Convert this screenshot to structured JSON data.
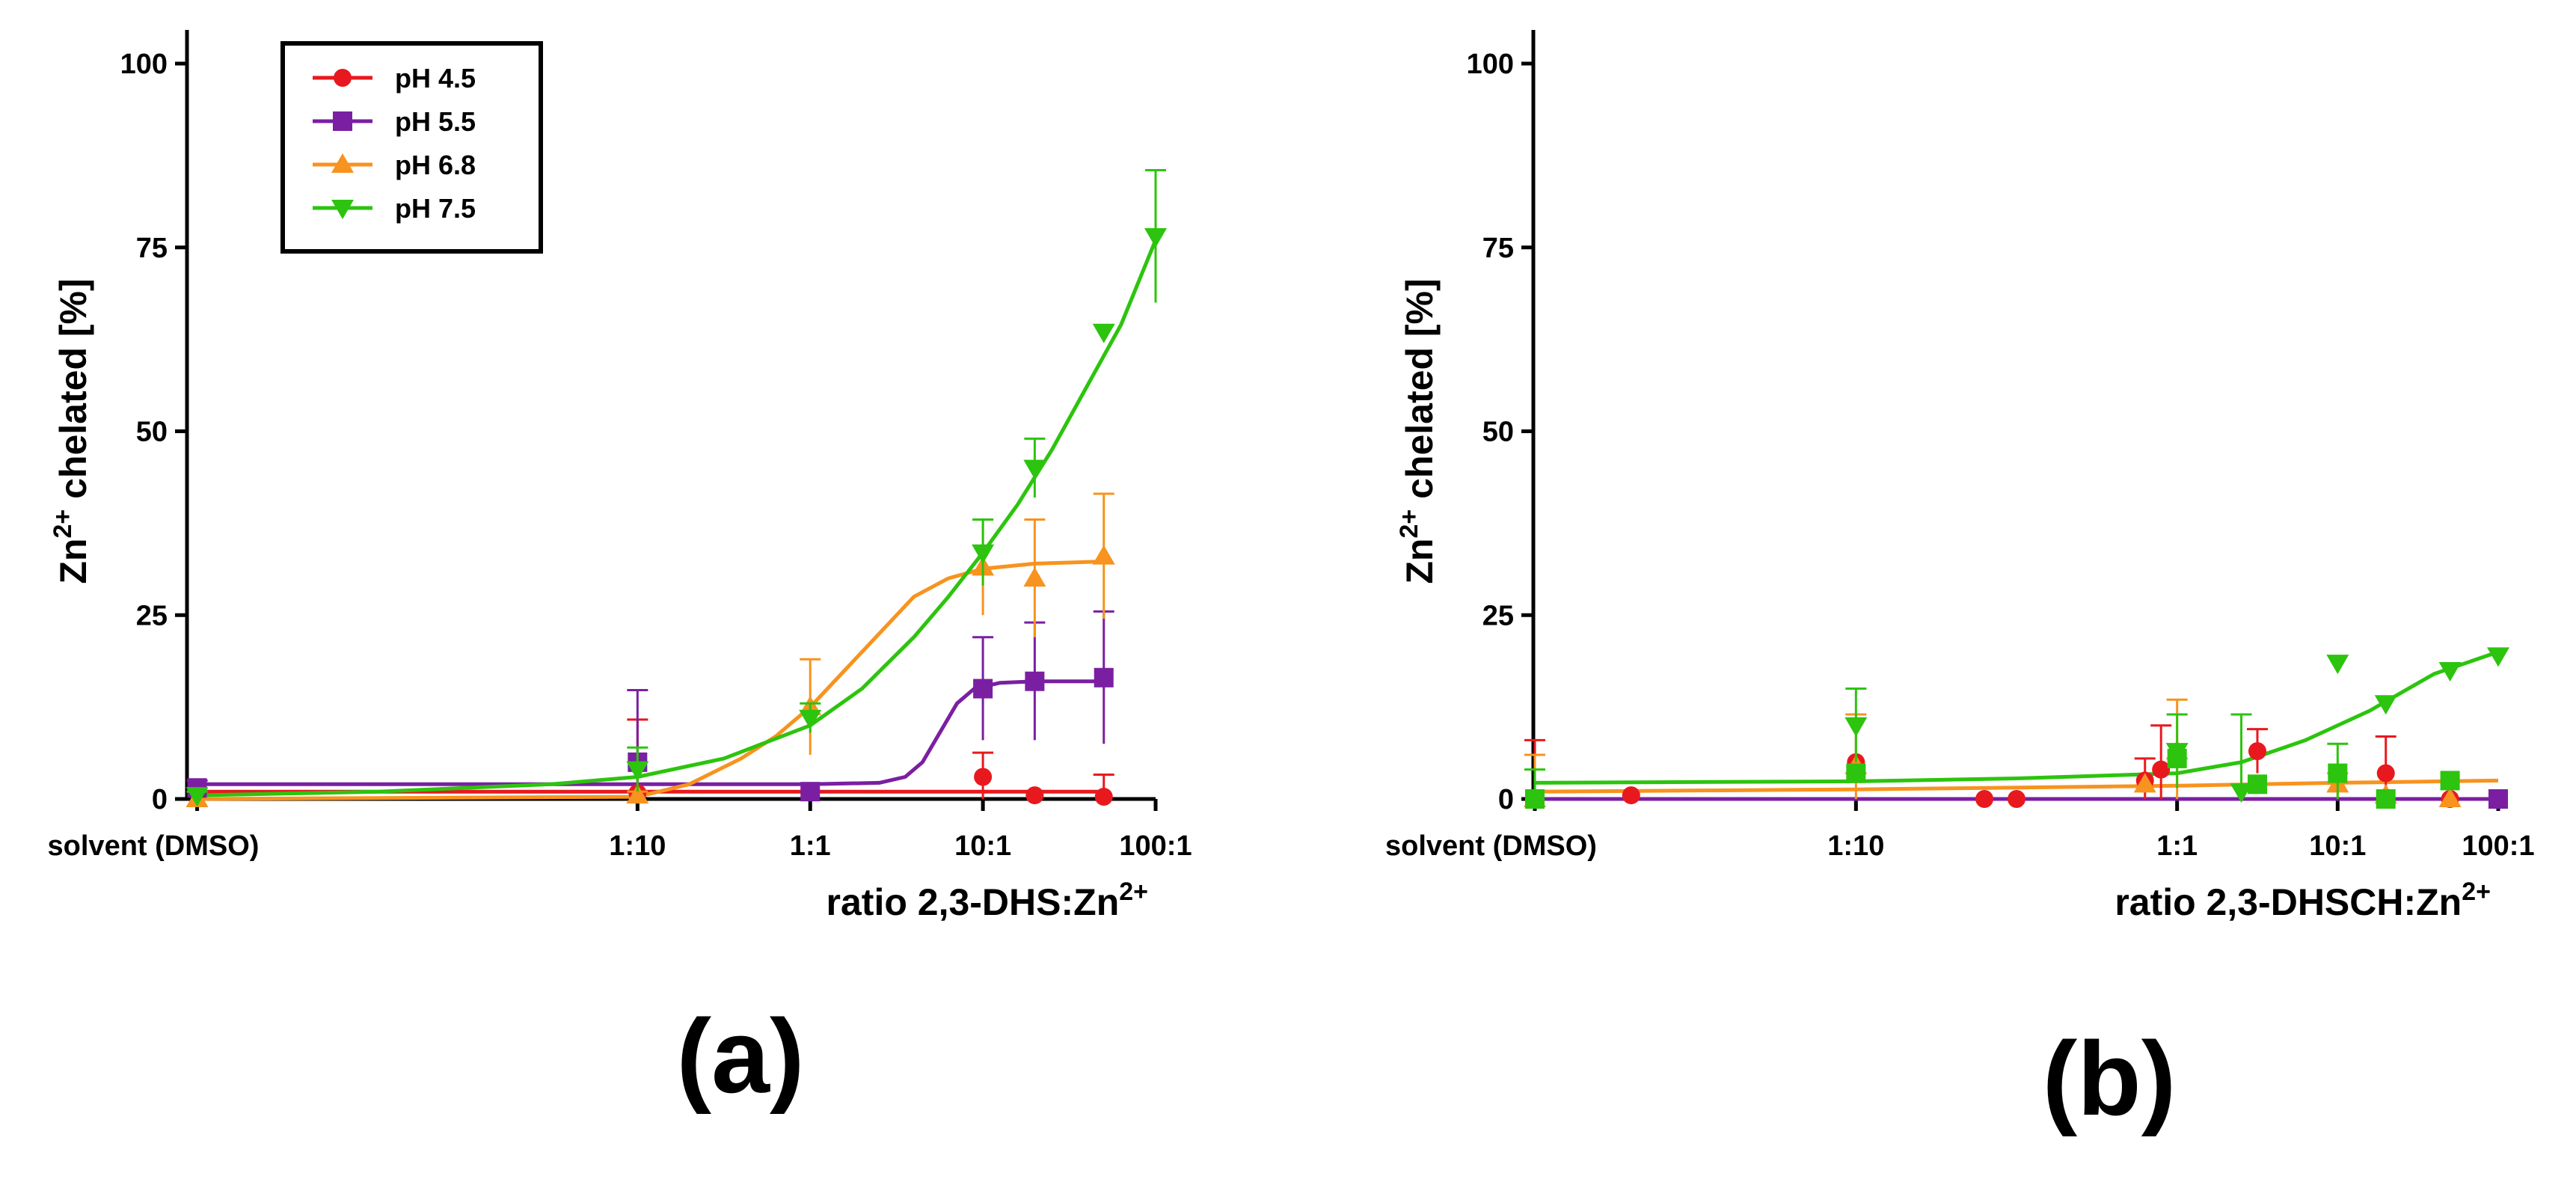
{
  "chart_data": [
    {
      "id": "a",
      "type": "scatter",
      "panel_label": "(a)",
      "ylabel": "Zn",
      "ylabel_sup": "2+",
      "ylabel_rest": " chelated [%]",
      "xlabel": "ratio 2,3-DHS:Zn",
      "xlabel_sup": "2+",
      "ylim": [
        0,
        100
      ],
      "yticks": [
        0,
        25,
        50,
        75,
        100
      ],
      "xlim": [
        -3.6,
        2.0
      ],
      "xticks": [
        {
          "x": -3.55,
          "label": "solvent (DMSO)"
        },
        {
          "x": -1,
          "label": "1:10"
        },
        {
          "x": 0,
          "label": "1:1"
        },
        {
          "x": 1,
          "label": "10:1"
        },
        {
          "x": 2,
          "label": "100:1"
        }
      ],
      "legend": {
        "position": "top-left",
        "entries": [
          "pH 4.5",
          "pH 5.5",
          "pH 6.8",
          "pH 7.5"
        ]
      },
      "series": [
        {
          "name": "pH 4.5",
          "color": "#e8191e",
          "marker": "circle",
          "points": [
            {
              "x": -3.55,
              "y": 1.0,
              "err": 1.5
            },
            {
              "x": -1,
              "y": 0.8,
              "err": 10.0
            },
            {
              "x": 0,
              "y": 1.0,
              "err": 0.0
            },
            {
              "x": 1,
              "y": 3.0,
              "err": 3.3
            },
            {
              "x": 1.3,
              "y": 0.5,
              "err": 0.0
            },
            {
              "x": 1.7,
              "y": 0.3,
              "err": 3.0
            }
          ],
          "curve": [
            [
              -3.55,
              1.0
            ],
            [
              -1,
              1.0
            ],
            [
              0,
              1.0
            ],
            [
              1,
              1.0
            ],
            [
              1.7,
              1.0
            ]
          ]
        },
        {
          "name": "pH 5.5",
          "color": "#7a1fa2",
          "marker": "square",
          "points": [
            {
              "x": -3.55,
              "y": 1.5,
              "err": 1.0
            },
            {
              "x": -1,
              "y": 5.0,
              "err": 9.8
            },
            {
              "x": 0,
              "y": 1.0,
              "err": 0.0
            },
            {
              "x": 1,
              "y": 15.0,
              "err": 7.0
            },
            {
              "x": 1.3,
              "y": 16.0,
              "err": 8.0
            },
            {
              "x": 1.7,
              "y": 16.5,
              "err": 9.0
            }
          ],
          "curve": [
            [
              -3.55,
              2.0
            ],
            [
              -1,
              2.0
            ],
            [
              0,
              2.0
            ],
            [
              0.4,
              2.2
            ],
            [
              0.55,
              3.0
            ],
            [
              0.65,
              5.0
            ],
            [
              0.75,
              9.0
            ],
            [
              0.85,
              13.0
            ],
            [
              0.95,
              15.0
            ],
            [
              1.1,
              15.8
            ],
            [
              1.3,
              16.0
            ],
            [
              1.7,
              16.0
            ]
          ]
        },
        {
          "name": "pH 6.8",
          "color": "#f7931e",
          "marker": "triangle-up",
          "points": [
            {
              "x": -3.55,
              "y": 0.0,
              "err": 1.0
            },
            {
              "x": -1,
              "y": 0.5,
              "err": 0.5
            },
            {
              "x": 0,
              "y": 12.5,
              "err": 6.5
            },
            {
              "x": 1,
              "y": 31.5,
              "err": 6.5
            },
            {
              "x": 1.3,
              "y": 30.0,
              "err": 8.0
            },
            {
              "x": 1.7,
              "y": 33.0,
              "err": 8.5
            }
          ],
          "curve": [
            [
              -3.55,
              0.0
            ],
            [
              -1,
              0.3
            ],
            [
              -0.7,
              2.0
            ],
            [
              -0.4,
              5.5
            ],
            [
              -0.2,
              8.5
            ],
            [
              0,
              12.5
            ],
            [
              0.2,
              17.5
            ],
            [
              0.4,
              22.5
            ],
            [
              0.6,
              27.5
            ],
            [
              0.8,
              30.0
            ],
            [
              1.0,
              31.3
            ],
            [
              1.3,
              32.0
            ],
            [
              1.7,
              32.3
            ]
          ]
        },
        {
          "name": "pH 7.5",
          "color": "#2cc40e",
          "marker": "triangle-down",
          "points": [
            {
              "x": -3.55,
              "y": 0.5,
              "err": 0.5
            },
            {
              "x": -1,
              "y": 4.0,
              "err": 3.0
            },
            {
              "x": 0,
              "y": 11.0,
              "err": 2.0
            },
            {
              "x": 1,
              "y": 33.5,
              "err": 4.5
            },
            {
              "x": 1.3,
              "y": 45.0,
              "err": 4.0
            },
            {
              "x": 1.7,
              "y": 63.5,
              "err": 0.0
            },
            {
              "x": 2.0,
              "y": 76.5,
              "err": 9.0
            }
          ],
          "curve": [
            [
              -3.55,
              0.5
            ],
            [
              -2.5,
              1.0
            ],
            [
              -1.5,
              2.0
            ],
            [
              -1,
              3.0
            ],
            [
              -0.5,
              5.5
            ],
            [
              0,
              10.0
            ],
            [
              0.3,
              15.0
            ],
            [
              0.6,
              22.0
            ],
            [
              0.8,
              27.5
            ],
            [
              1.0,
              33.5
            ],
            [
              1.2,
              40.0
            ],
            [
              1.4,
              47.5
            ],
            [
              1.6,
              56.0
            ],
            [
              1.8,
              64.5
            ],
            [
              2.0,
              76.0
            ]
          ]
        }
      ]
    },
    {
      "id": "b",
      "type": "scatter",
      "panel_label": "(b)",
      "ylabel": "Zn",
      "ylabel_sup": "2+",
      "ylabel_rest": " chelated [%]",
      "xlabel": "ratio 2,3-DHSCH:Zn",
      "xlabel_sup": "2+",
      "ylim": [
        0,
        100
      ],
      "yticks": [
        0,
        25,
        50,
        75,
        100
      ],
      "xlim": [
        -2.0,
        1.0
      ],
      "xticks": [
        {
          "x": -2.0,
          "label": "solvent (DMSO)"
        },
        {
          "x": -1,
          "label": "1:10"
        },
        {
          "x": 0,
          "label": "1:1"
        },
        {
          "x": 0.5,
          "label": "10:1"
        },
        {
          "x": 1.0,
          "label": "100:1"
        }
      ],
      "series": [
        {
          "name": "pH 4.5",
          "color": "#e8191e",
          "marker": "circle",
          "points": [
            {
              "x": -2.0,
              "y": 0.0,
              "err": 8.0
            },
            {
              "x": -1.7,
              "y": 0.5,
              "err": 0.0
            },
            {
              "x": -1.0,
              "y": 5.0,
              "err": 0.0
            },
            {
              "x": -0.6,
              "y": 0.0,
              "err": 0.0
            },
            {
              "x": -0.5,
              "y": 0.0,
              "err": 0.0
            },
            {
              "x": -0.1,
              "y": 2.5,
              "err": 3.0
            },
            {
              "x": -0.05,
              "y": 4.0,
              "err": 6.0
            },
            {
              "x": 0.25,
              "y": 6.5,
              "err": 3.0
            },
            {
              "x": 0.5,
              "y": 3.5,
              "err": 0.0
            },
            {
              "x": 0.65,
              "y": 3.5,
              "err": 5.0
            },
            {
              "x": 0.85,
              "y": 0.0,
              "err": 0.0
            },
            {
              "x": 1.0,
              "y": 0.0,
              "err": 0.0
            }
          ],
          "curve": []
        },
        {
          "name": "pH 5.5",
          "color": "#7a1fa2",
          "marker": "square",
          "points": [
            {
              "x": -2.0,
              "y": 0.0,
              "err": 0.0
            },
            {
              "x": 1.0,
              "y": 0.0,
              "err": 0.0
            }
          ],
          "curve": [
            [
              -2.0,
              0.0
            ],
            [
              1.0,
              0.0
            ]
          ]
        },
        {
          "name": "pH 6.8",
          "color": "#f7931e",
          "marker": "triangle-up",
          "points": [
            {
              "x": -2.0,
              "y": 0.0,
              "err": 6.0
            },
            {
              "x": -1.0,
              "y": 4.5,
              "err": 7.0
            },
            {
              "x": -0.1,
              "y": 2.0,
              "err": 0.0
            },
            {
              "x": 0.0,
              "y": 6.5,
              "err": 7.0
            },
            {
              "x": 0.5,
              "y": 2.0,
              "err": 1.5
            },
            {
              "x": 0.65,
              "y": 0.5,
              "err": 0.0
            },
            {
              "x": 0.85,
              "y": 0.0,
              "err": 0.0
            }
          ],
          "curve": [
            [
              -2.0,
              1.0
            ],
            [
              -1.0,
              1.3
            ],
            [
              0.0,
              1.8
            ],
            [
              0.5,
              2.2
            ],
            [
              1.0,
              2.5
            ]
          ]
        },
        {
          "name": "pH 7.5",
          "color": "#2cc40e",
          "marker": "mixed",
          "points": [
            {
              "x": -2.0,
              "y": 0.0,
              "err": 4.0
            },
            {
              "x": -1.0,
              "y": 10.0,
              "err": 5.0
            },
            {
              "x": -1.0,
              "y": 3.5,
              "err": 0.0
            },
            {
              "x": 0.0,
              "y": 6.5,
              "err": 5.0
            },
            {
              "x": 0.0,
              "y": 5.5,
              "err": 0.0
            },
            {
              "x": 0.2,
              "y": 1.0,
              "err": 10.5
            },
            {
              "x": 0.25,
              "y": 2.0,
              "err": 0.0
            },
            {
              "x": 0.5,
              "y": 18.5,
              "err": 0.0
            },
            {
              "x": 0.5,
              "y": 3.5,
              "err": 4.0
            },
            {
              "x": 0.65,
              "y": 13.0,
              "err": 0.0
            },
            {
              "x": 0.65,
              "y": 0.0,
              "err": 0.0
            },
            {
              "x": 0.85,
              "y": 17.5,
              "err": 0.0
            },
            {
              "x": 0.85,
              "y": 2.5,
              "err": 0.0
            },
            {
              "x": 1.0,
              "y": 19.5,
              "err": 0.0
            }
          ],
          "curve": [
            [
              -2.0,
              2.2
            ],
            [
              -1.0,
              2.4
            ],
            [
              -0.5,
              2.8
            ],
            [
              0.0,
              3.5
            ],
            [
              0.2,
              5.0
            ],
            [
              0.4,
              8.0
            ],
            [
              0.6,
              12.0
            ],
            [
              0.8,
              17.0
            ],
            [
              1.0,
              20.0
            ]
          ]
        }
      ]
    }
  ]
}
